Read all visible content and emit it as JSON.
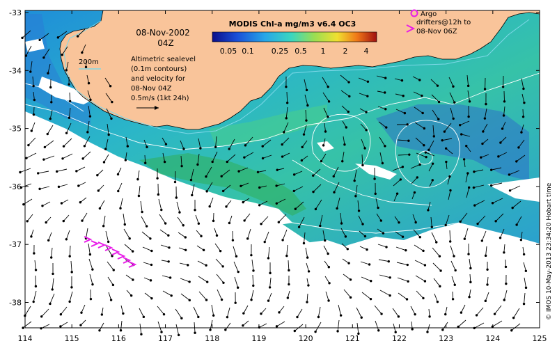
{
  "map": {
    "title": "MODIS Chl-a mg/m3 v6.4 OC3",
    "date": "08-Nov-2002",
    "time": "04Z",
    "isobath_label": "200m",
    "legend_text": [
      "Altimetric sealevel",
      "(0.1m contours)",
      "and velocity for",
      "08-Nov 04Z"
    ],
    "scale_text": [
      "0.5m/s (1kt 24h)"
    ],
    "argo_text": [
      "Argo",
      "drifters@12h to",
      "08-Nov 06Z"
    ],
    "credit": "© IMOS 10-May-2013 23:34:20 Hobart time",
    "colorbar_ticks": [
      "0.05",
      "0.1",
      "0.25",
      "0.5",
      "1",
      "2",
      "4"
    ],
    "x_ticks": [
      "114",
      "115",
      "116",
      "117",
      "118",
      "119",
      "120",
      "121",
      "122",
      "123",
      "124",
      "125"
    ],
    "y_ticks": [
      "-33",
      "-34",
      "-35",
      "-36",
      "-37",
      "-38"
    ],
    "colors": {
      "land": "#f9c49a",
      "cloud": "#ffffff",
      "argo": "#e81ce8",
      "chl_low": "#2a6fd0",
      "chl_mid": "#33c8c8",
      "chl_high": "#2ea84a",
      "contour": "#ffffff",
      "arrow": "#000000"
    }
  }
}
